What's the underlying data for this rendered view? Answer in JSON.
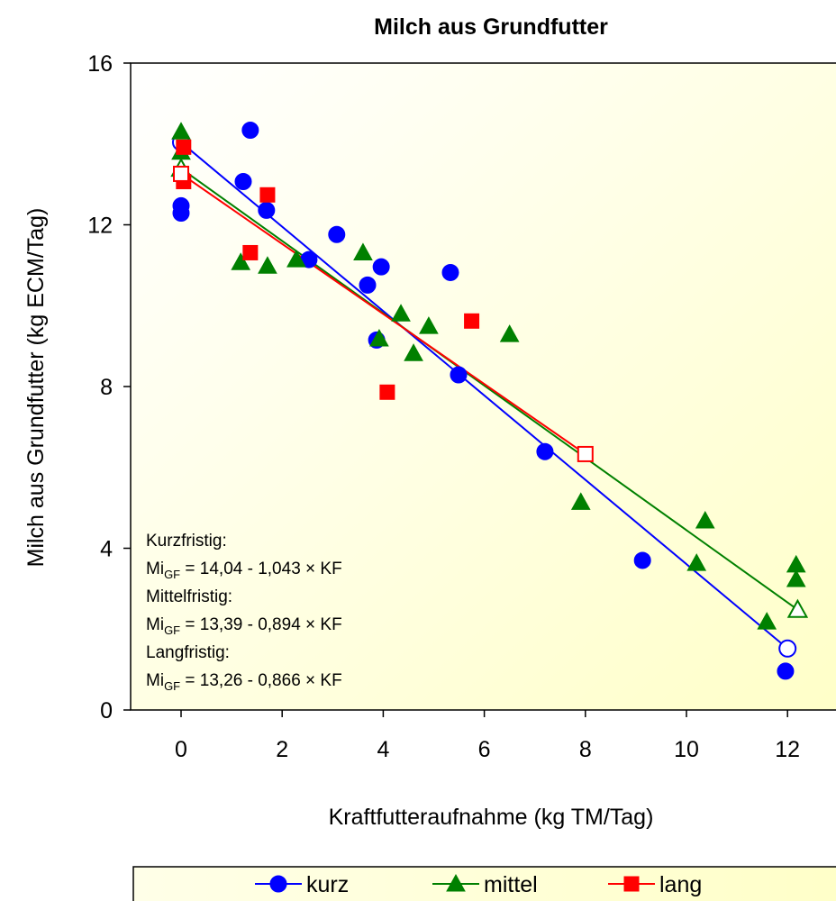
{
  "chart_data": {
    "type": "scatter",
    "title": "Milch aus Grundfutter",
    "x_label": "Kraftfutteraufnahme (kg TM/Tag)",
    "y_label": "Milch aus Grundfutter (kg ECM/Tag)",
    "xlim": [
      -1,
      13
    ],
    "ylim": [
      0,
      16
    ],
    "xticks": [
      0,
      2,
      4,
      6,
      8,
      10,
      12
    ],
    "yticks": [
      0,
      4,
      8,
      12,
      16
    ],
    "series": [
      {
        "name": "kurz",
        "color": "#0000ff",
        "marker": "circle",
        "x": [
          0,
          0,
          1.23,
          1.37,
          1.69,
          2.53,
          3.08,
          3.69,
          3.96,
          3.87,
          5.33,
          5.49,
          7.2,
          9.13,
          11.96
        ],
        "values": [
          12.47,
          12.29,
          13.07,
          14.34,
          12.36,
          11.14,
          11.76,
          10.51,
          10.96,
          9.15,
          10.82,
          8.29,
          6.39,
          3.7,
          0.96
        ],
        "fit": {
          "x": [
            0,
            12
          ],
          "values": [
            14.04,
            1.52
          ]
        }
      },
      {
        "name": "mittel",
        "color": "#008000",
        "marker": "triangle",
        "x": [
          0,
          0,
          0,
          1.18,
          1.71,
          2.28,
          3.6,
          3.92,
          4.35,
          4.6,
          4.9,
          6.5,
          7.91,
          10.37,
          10.2,
          11.59,
          12.17,
          12.17
        ],
        "values": [
          14.3,
          13.8,
          13.4,
          11.07,
          10.98,
          11.14,
          11.31,
          9.18,
          9.8,
          8.82,
          9.49,
          9.29,
          5.14,
          4.68,
          3.63,
          2.18,
          3.59,
          3.23
        ],
        "fit": {
          "x": [
            0,
            12.2
          ],
          "values": [
            13.39,
            2.48
          ]
        }
      },
      {
        "name": "lang",
        "color": "#ff0000",
        "marker": "square",
        "x": [
          0.05,
          0.05,
          1.37,
          1.71,
          4.08,
          5.75
        ],
        "values": [
          13.92,
          13.07,
          11.31,
          12.74,
          7.86,
          9.62
        ],
        "fit": {
          "x": [
            0,
            8
          ],
          "values": [
            13.26,
            6.33
          ]
        }
      }
    ],
    "annotations": [
      {
        "text": "Kurzfristig:"
      },
      {
        "prefix": "Mi",
        "sub": "GF",
        "text": " = 14,04 - 1,043 × KF"
      },
      {
        "text": "Mittelfristig:"
      },
      {
        "prefix": "Mi",
        "sub": "GF",
        "text": " = 13,39 - 0,894 × KF"
      },
      {
        "text": "Langfristig:"
      },
      {
        "prefix": "Mi",
        "sub": "GF",
        "text": " = 13,26 - 0,866 × KF"
      }
    ]
  }
}
